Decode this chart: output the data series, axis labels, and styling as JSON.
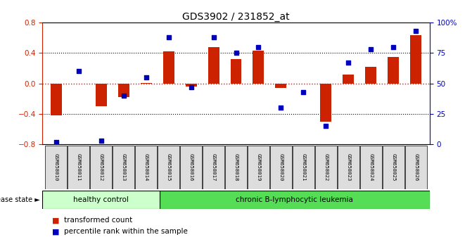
{
  "title": "GDS3902 / 231852_at",
  "samples": [
    "GSM658010",
    "GSM658011",
    "GSM658012",
    "GSM658013",
    "GSM658014",
    "GSM658015",
    "GSM658016",
    "GSM658017",
    "GSM658018",
    "GSM658019",
    "GSM658020",
    "GSM658021",
    "GSM658022",
    "GSM658023",
    "GSM658024",
    "GSM658025",
    "GSM658026"
  ],
  "red_bars": [
    -0.42,
    0.0,
    -0.3,
    -0.18,
    0.01,
    0.42,
    -0.04,
    0.48,
    0.32,
    0.43,
    -0.06,
    0.0,
    -0.5,
    0.12,
    0.22,
    0.35,
    0.63
  ],
  "blue_dots": [
    2,
    60,
    3,
    40,
    55,
    88,
    47,
    88,
    75,
    80,
    30,
    43,
    15,
    67,
    78,
    80,
    93
  ],
  "ylim_left": [
    -0.8,
    0.8
  ],
  "ylim_right": [
    0,
    100
  ],
  "yticks_left": [
    -0.8,
    -0.4,
    0.0,
    0.4,
    0.8
  ],
  "yticks_right": [
    0,
    25,
    50,
    75,
    100
  ],
  "ytick_labels_right": [
    "0",
    "25",
    "50",
    "75",
    "100%"
  ],
  "healthy_count": 5,
  "leukemia_count": 12,
  "group1_label": "healthy control",
  "group2_label": "chronic B-lymphocytic leukemia",
  "disease_state_label": "disease state",
  "legend_red": "transformed count",
  "legend_blue": "percentile rank within the sample",
  "bar_color": "#cc2200",
  "dot_color": "#0000bb",
  "healthy_bg": "#ccffcc",
  "leukemia_bg": "#55dd55",
  "sample_box_bg": "#dddddd"
}
